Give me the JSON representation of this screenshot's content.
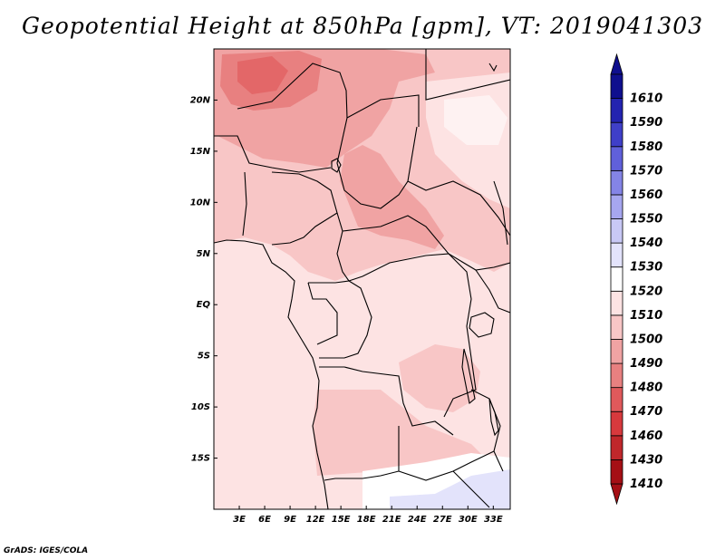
{
  "title": "Geopotential Height at 850hPa [gpm], VT: 2019041303",
  "credit": "GrADS: IGES/COLA",
  "map": {
    "lon_range": [
      0,
      35
    ],
    "lat_range": [
      -20,
      25
    ],
    "x_ticks": [
      {
        "lon": 3,
        "label": "3E"
      },
      {
        "lon": 6,
        "label": "6E"
      },
      {
        "lon": 9,
        "label": "9E"
      },
      {
        "lon": 12,
        "label": "12E"
      },
      {
        "lon": 15,
        "label": "15E"
      },
      {
        "lon": 18,
        "label": "18E"
      },
      {
        "lon": 21,
        "label": "21E"
      },
      {
        "lon": 24,
        "label": "24E"
      },
      {
        "lon": 27,
        "label": "27E"
      },
      {
        "lon": 30,
        "label": "30E"
      },
      {
        "lon": 33,
        "label": "33E"
      }
    ],
    "y_ticks": [
      {
        "lat": 20,
        "label": "20N"
      },
      {
        "lat": 15,
        "label": "15N"
      },
      {
        "lat": 10,
        "label": "10N"
      },
      {
        "lat": 5,
        "label": "5N"
      },
      {
        "lat": 0,
        "label": "EQ"
      },
      {
        "lat": -5,
        "label": "5S"
      },
      {
        "lat": -10,
        "label": "10S"
      },
      {
        "lat": -15,
        "label": "15S"
      }
    ]
  },
  "colorbar": {
    "levels": [
      "1410",
      "1430",
      "1460",
      "1470",
      "1480",
      "1490",
      "1500",
      "1510",
      "1520",
      "1530",
      "1540",
      "1550",
      "1560",
      "1570",
      "1580",
      "1590",
      "1610"
    ],
    "colors": [
      "#a50f15",
      "#c0272b",
      "#d7393d",
      "#e0595b",
      "#e88080",
      "#f0a3a3",
      "#f8c6c6",
      "#fde3e3",
      "#ffffff",
      "#e3e3fb",
      "#c8c8f5",
      "#a6a6ef",
      "#8484e6",
      "#6060da",
      "#3f3fc8",
      "#2323b0",
      "#0f0f8e"
    ]
  },
  "field_colors": {
    "very_high_low": "#e88080",
    "low_1480": "#f0a3a3",
    "mid_1490": "#f8c6c6",
    "high_1500": "#fde3e3",
    "white_1510": "#ffffff",
    "blue_1520": "#e3e3fb"
  }
}
